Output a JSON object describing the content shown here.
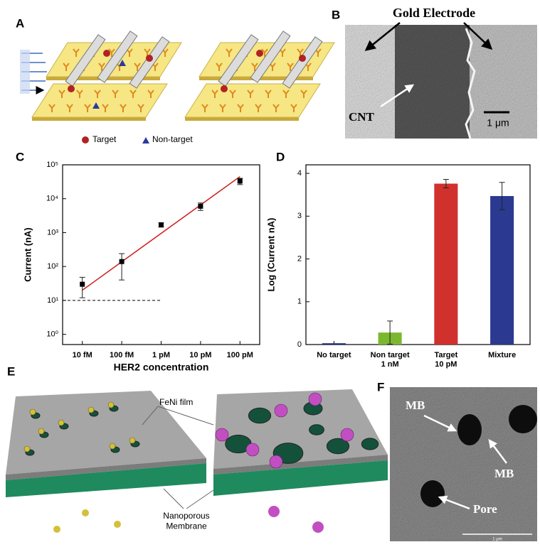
{
  "panels": {
    "a": {
      "label": "A",
      "legend": [
        "Target",
        "Non-target"
      ]
    },
    "b": {
      "label": "B",
      "title": "Gold Electrode",
      "annotation": "CNT",
      "scale_bar": "1 μm"
    },
    "e": {
      "label": "E",
      "film": "FeNi film",
      "membrane": "Nanoporous\nMembrane"
    },
    "f": {
      "label": "F",
      "annotations": [
        "MB",
        "MB",
        "Pore"
      ],
      "scale_bar": "1 μm"
    }
  },
  "chart_data": [
    {
      "type": "scatter",
      "label": "C",
      "categories": [
        "10 fM",
        "100 fM",
        "1 pM",
        "10 pM",
        "100 pM"
      ],
      "series": [
        {
          "color": "#000000",
          "values": [
            30,
            140,
            1700,
            6000,
            33000
          ],
          "errors": [
            18,
            100,
            250,
            1500,
            7000
          ]
        }
      ],
      "fit": {
        "color": "#cc1f1a",
        "values": [
          20,
          138,
          950,
          6550,
          45000
        ]
      },
      "threshold": {
        "value": 10,
        "color": "#000000"
      },
      "log_y": true,
      "ylim": [
        0.5,
        100000
      ],
      "yticks": [
        {
          "value": 1,
          "label": "10⁰"
        },
        {
          "value": 10,
          "label": "10¹"
        },
        {
          "value": 100,
          "label": "10²"
        },
        {
          "value": 1000,
          "label": "10³"
        },
        {
          "value": 10000,
          "label": "10⁴"
        },
        {
          "value": 100000,
          "label": "10⁵"
        }
      ],
      "xlabel": "HER2 concentration",
      "ylabel": "Current (nA)"
    },
    {
      "type": "bar",
      "label": "D",
      "categories": [
        "No target",
        "Non target\n1 nM",
        "Target\n10 pM",
        "Mixture"
      ],
      "values": [
        0.03,
        0.28,
        3.76,
        3.47
      ],
      "errors": [
        null,
        0.27,
        0.1,
        0.32
      ],
      "colors": [
        "#1f2a7a",
        "#7cb82f",
        "#d0312d",
        "#2b3990"
      ],
      "ylim": [
        0,
        4.2
      ],
      "yticks": [
        0,
        1,
        2,
        3,
        4
      ],
      "ylabel": "Log (Current nA)"
    }
  ]
}
